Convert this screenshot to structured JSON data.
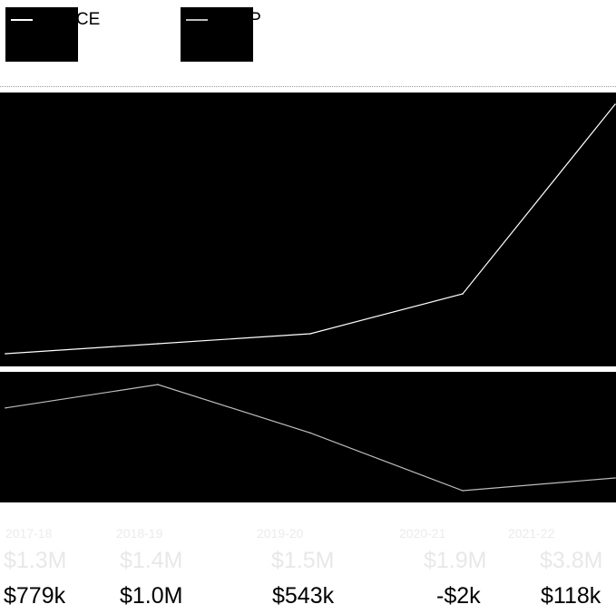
{
  "legend": [
    {
      "label": "PACE"
    },
    {
      "label": "FLP"
    }
  ],
  "chart_data": {
    "type": "line",
    "x": [
      "2017-18",
      "2018-19",
      "2019-20",
      "2020-21",
      "2021-22"
    ],
    "series": [
      {
        "name": "PACE",
        "values": [
          1300000,
          1400000,
          1500000,
          1900000,
          3800000
        ],
        "labels": [
          "$1.3M",
          "$1.4M",
          "$1.5M",
          "$1.9M",
          "$3.8M"
        ],
        "color": "#ffffff"
      },
      {
        "name": "FLP",
        "values": [
          779000,
          1000000,
          543000,
          -2000,
          118000
        ],
        "labels": [
          "$779k",
          "$1.0M",
          "$543k",
          "-$2k",
          "$118k"
        ],
        "color": "#bdbdbd"
      }
    ]
  }
}
